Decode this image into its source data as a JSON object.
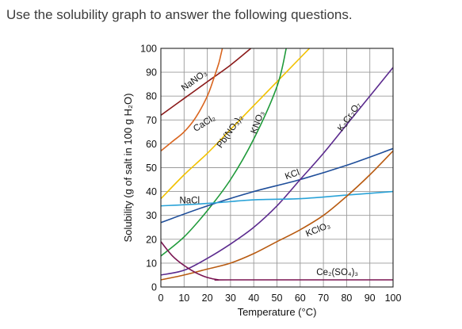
{
  "question": "Use the solubility graph to answer the following questions.",
  "chart_data": {
    "type": "line",
    "title": "",
    "xlabel": "Temperature (°C)",
    "ylabel": "Solubility (g of salt in 100 g H₂O)",
    "xlim": [
      0,
      100
    ],
    "ylim": [
      0,
      100
    ],
    "x_ticks": [
      "0",
      "10",
      "20",
      "30",
      "40",
      "50",
      "60",
      "70",
      "80",
      "90",
      "100"
    ],
    "y_ticks": [
      "0",
      "10",
      "20",
      "30",
      "40",
      "50",
      "60",
      "70",
      "80",
      "90",
      "100"
    ],
    "grid": true,
    "series": [
      {
        "name": "NaNO₃",
        "color": "#8b1a1a",
        "label_at": [
          10,
          82,
          -36
        ],
        "points": [
          [
            0,
            72
          ],
          [
            10,
            79
          ],
          [
            20,
            86
          ],
          [
            30,
            93
          ],
          [
            40,
            101
          ]
        ]
      },
      {
        "name": "CaCl₂",
        "color": "#d9651f",
        "label_at": [
          15,
          65,
          -32
        ],
        "points": [
          [
            0,
            57
          ],
          [
            5,
            61
          ],
          [
            10,
            65
          ],
          [
            15,
            71
          ],
          [
            20,
            80
          ],
          [
            23,
            88
          ],
          [
            25,
            94
          ],
          [
            26,
            98
          ],
          [
            26.5,
            100
          ]
        ]
      },
      {
        "name": "Pb(NO₃)₂",
        "color": "#f2c100",
        "label_at": [
          26,
          58,
          -55
        ],
        "points": [
          [
            0,
            37
          ],
          [
            10,
            47
          ],
          [
            20,
            56
          ],
          [
            30,
            66
          ],
          [
            40,
            76
          ],
          [
            50,
            86
          ],
          [
            60,
            96
          ],
          [
            64,
            100
          ]
        ]
      },
      {
        "name": "KNO₃",
        "color": "#1f9a3a",
        "label_at": [
          41,
          64,
          -70
        ],
        "points": [
          [
            0,
            13
          ],
          [
            10,
            21
          ],
          [
            20,
            32
          ],
          [
            30,
            45
          ],
          [
            40,
            62
          ],
          [
            50,
            84
          ],
          [
            54,
            100
          ]
        ]
      },
      {
        "name": "KCl",
        "color": "#1f4e9a",
        "label_at": [
          54,
          45,
          -20
        ],
        "points": [
          [
            0,
            27
          ],
          [
            20,
            34
          ],
          [
            40,
            40
          ],
          [
            60,
            45
          ],
          [
            80,
            51
          ],
          [
            100,
            58
          ]
        ]
      },
      {
        "name": "K₂Cr₂O₇",
        "color": "#5b2a8e",
        "label_at": [
          78,
          65,
          -55
        ],
        "points": [
          [
            0,
            5
          ],
          [
            10,
            7
          ],
          [
            20,
            12
          ],
          [
            30,
            18
          ],
          [
            40,
            25
          ],
          [
            50,
            34
          ],
          [
            60,
            45
          ],
          [
            70,
            56
          ],
          [
            80,
            68
          ],
          [
            90,
            80
          ],
          [
            100,
            92
          ]
        ]
      },
      {
        "name": "NaCl",
        "color": "#2aa3d8",
        "label_at": [
          8,
          35,
          0
        ],
        "points": [
          [
            0,
            34
          ],
          [
            20,
            35
          ],
          [
            40,
            36.5
          ],
          [
            60,
            37
          ],
          [
            80,
            38.5
          ],
          [
            100,
            40
          ]
        ]
      },
      {
        "name": "KClO₃",
        "color": "#b85a10",
        "label_at": [
          63,
          21,
          -22
        ],
        "points": [
          [
            0,
            3
          ],
          [
            10,
            5
          ],
          [
            20,
            7.5
          ],
          [
            30,
            10
          ],
          [
            40,
            14
          ],
          [
            50,
            19
          ],
          [
            60,
            24
          ],
          [
            70,
            30
          ],
          [
            80,
            38
          ],
          [
            90,
            47
          ],
          [
            100,
            57
          ]
        ]
      },
      {
        "name": "Ce₂(SO₄)₃",
        "color": "#7a1552",
        "label_at": [
          67,
          5,
          0
        ],
        "points": [
          [
            0,
            19
          ],
          [
            5,
            13
          ],
          [
            10,
            9
          ],
          [
            15,
            6
          ],
          [
            20,
            4
          ],
          [
            25,
            3
          ],
          [
            30,
            3
          ],
          [
            100,
            3
          ]
        ]
      }
    ]
  }
}
